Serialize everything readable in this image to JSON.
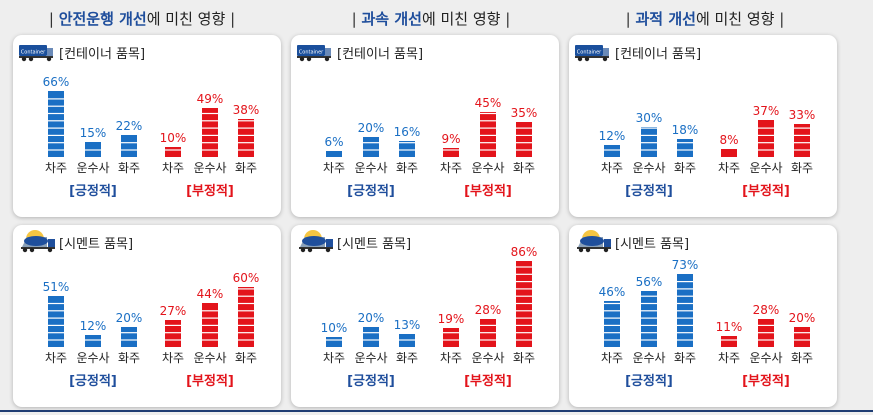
{
  "columns": [
    {
      "highlight": "안전운행 개선",
      "rest": "에 미친 영향",
      "sep": "|"
    },
    {
      "highlight": "과속 개선",
      "rest": "에 미친 영향",
      "sep": "|"
    },
    {
      "highlight": "과적 개선",
      "rest": "에 미친 영향",
      "sep": "|"
    }
  ],
  "row_labels": [
    "[컨테이너 품목]",
    "[시멘트 품목]"
  ],
  "truck_text": "Container",
  "group_labels": {
    "positive": "[긍정적]",
    "negative": "[부정적]"
  },
  "colors": {
    "positive": "#1a6fc4",
    "negative": "#e3141b",
    "title_accent": "#1f4e9c"
  },
  "chart_data": [
    {
      "type": "bar",
      "title": "안전운행 개선에 미친 영향 — 컨테이너 품목",
      "categories": [
        "차주",
        "운수사",
        "화주"
      ],
      "series": [
        {
          "name": "긍정적",
          "values": [
            66,
            15,
            22
          ]
        },
        {
          "name": "부정적",
          "values": [
            10,
            49,
            38
          ]
        }
      ]
    },
    {
      "type": "bar",
      "title": "과속 개선에 미친 영향 — 컨테이너 품목",
      "categories": [
        "차주",
        "운수사",
        "화주"
      ],
      "series": [
        {
          "name": "긍정적",
          "values": [
            6,
            20,
            16
          ]
        },
        {
          "name": "부정적",
          "values": [
            9,
            45,
            35
          ]
        }
      ]
    },
    {
      "type": "bar",
      "title": "과적 개선에 미친 영향 — 컨테이너 품목",
      "categories": [
        "차주",
        "운수사",
        "화주"
      ],
      "series": [
        {
          "name": "긍정적",
          "values": [
            12,
            30,
            18
          ]
        },
        {
          "name": "부정적",
          "values": [
            8,
            37,
            33
          ]
        }
      ]
    },
    {
      "type": "bar",
      "title": "안전운행 개선에 미친 영향 — 시멘트 품목",
      "categories": [
        "차주",
        "운수사",
        "화주"
      ],
      "series": [
        {
          "name": "긍정적",
          "values": [
            51,
            12,
            20
          ]
        },
        {
          "name": "부정적",
          "values": [
            27,
            44,
            60
          ]
        }
      ]
    },
    {
      "type": "bar",
      "title": "과속 개선에 미친 영향 — 시멘트 품목",
      "categories": [
        "차주",
        "운수사",
        "화주"
      ],
      "series": [
        {
          "name": "긍정적",
          "values": [
            10,
            20,
            13
          ]
        },
        {
          "name": "부정적",
          "values": [
            19,
            28,
            86
          ]
        }
      ]
    },
    {
      "type": "bar",
      "title": "과적 개선에 미친 영향 — 시멘트 품목",
      "categories": [
        "차주",
        "운수사",
        "화주"
      ],
      "series": [
        {
          "name": "긍정적",
          "values": [
            46,
            56,
            73
          ]
        },
        {
          "name": "부정적",
          "values": [
            11,
            28,
            20
          ]
        }
      ]
    }
  ]
}
